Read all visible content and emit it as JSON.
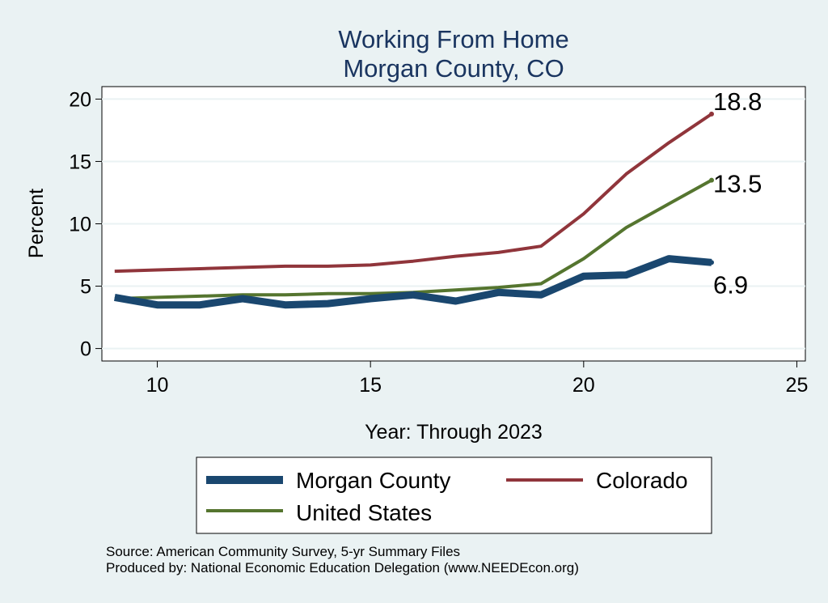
{
  "chart_data": {
    "type": "line",
    "title": [
      "Working From Home",
      "Morgan County, CO"
    ],
    "xlabel": "Year: Through 2023",
    "ylabel": "Percent",
    "xlim": [
      8.7,
      25.2
    ],
    "ylim": [
      -1.0,
      21.0
    ],
    "xticks": [
      10,
      15,
      20,
      25
    ],
    "yticks": [
      0,
      5,
      10,
      15,
      20
    ],
    "grid": "horizontal",
    "legend_position": "bottom",
    "x": [
      9,
      10,
      11,
      12,
      13,
      14,
      15,
      16,
      17,
      18,
      19,
      20,
      21,
      22,
      23
    ],
    "series": [
      {
        "name": "Morgan County",
        "color": "#1a476f",
        "values": [
          4.1,
          3.5,
          3.5,
          4.0,
          3.5,
          3.6,
          4.0,
          4.3,
          3.8,
          4.5,
          4.3,
          5.8,
          5.9,
          7.2,
          6.9
        ],
        "end_label": "6.9"
      },
      {
        "name": "Colorado",
        "color": "#90353b",
        "values": [
          6.2,
          6.3,
          6.4,
          6.5,
          6.6,
          6.6,
          6.7,
          7.0,
          7.4,
          7.7,
          8.2,
          10.8,
          14.0,
          16.5,
          18.8
        ],
        "end_label": "18.8"
      },
      {
        "name": "United States",
        "color": "#55752f",
        "values": [
          4.0,
          4.1,
          4.2,
          4.3,
          4.3,
          4.4,
          4.4,
          4.5,
          4.7,
          4.9,
          5.2,
          7.2,
          9.7,
          11.6,
          13.5
        ],
        "end_label": "13.5"
      }
    ]
  },
  "footer": {
    "source": "Source: American Community Survey, 5-yr Summary Files",
    "producer": "Produced by: National Economic Education Delegation (www.NEEDEcon.org)"
  }
}
